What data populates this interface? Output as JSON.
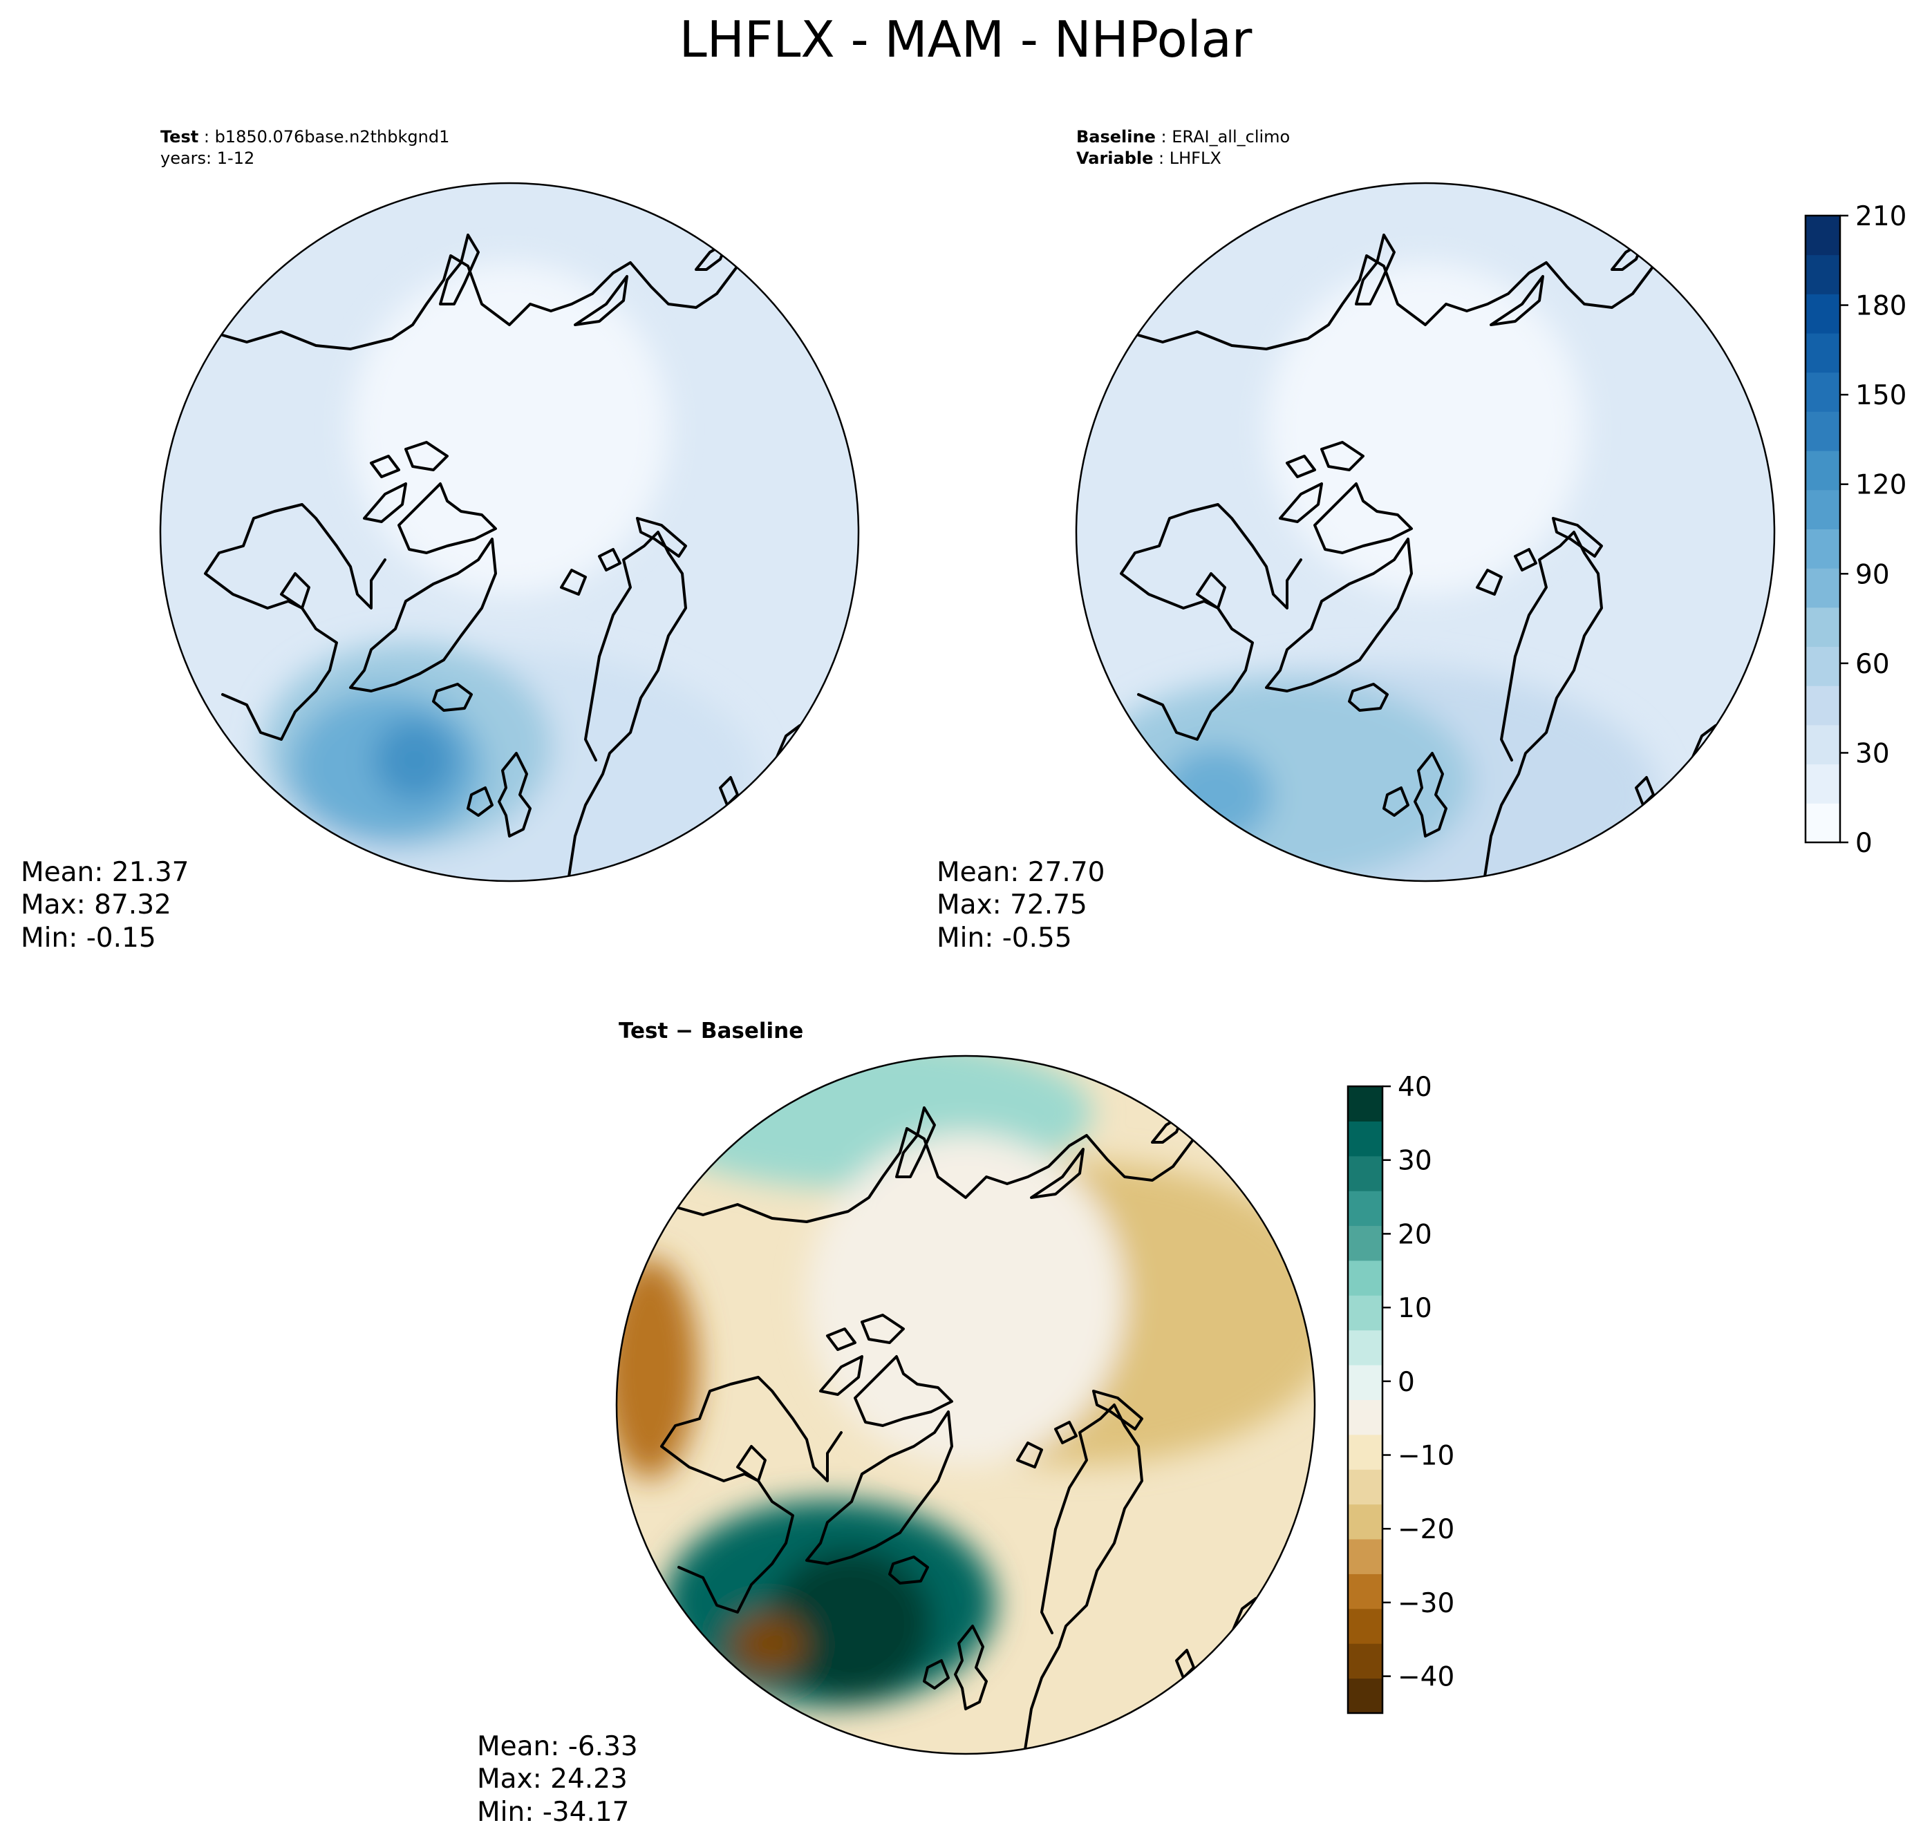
{
  "figure": {
    "title": "LHFLX - MAM - NHPolar"
  },
  "panels": {
    "test": {
      "label_key": "Test",
      "label_value": "b1850.076base.n2thbkgnd1",
      "years": "years: 1-12",
      "stats": {
        "mean": "Mean: 21.37",
        "max": "Max: 87.32",
        "min": "Min: -0.15"
      }
    },
    "baseline": {
      "label_key": "Baseline",
      "label_value": "ERAI_all_climo",
      "variable_key": "Variable",
      "variable_value": "LHFLX",
      "stats": {
        "mean": "Mean: 27.70",
        "max": "Max: 72.75",
        "min": "Min: -0.55"
      }
    },
    "diff": {
      "title": "Test − Baseline",
      "stats": {
        "mean": "Mean: -6.33",
        "max": "Max: 24.23",
        "min": "Min: -34.17"
      }
    }
  },
  "colorbars": {
    "blues": {
      "ticks": [
        "0",
        "30",
        "60",
        "90",
        "120",
        "150",
        "180",
        "210"
      ],
      "range": [
        0,
        210
      ],
      "colors": [
        "#f7fbff",
        "#e6f0fa",
        "#d6e6f4",
        "#c6dbef",
        "#b0d2e8",
        "#9ecae1",
        "#7fb9da",
        "#6baed6",
        "#539ecd",
        "#4292c6",
        "#2e7ebc",
        "#2171b5",
        "#1361a9",
        "#08519c",
        "#083f80",
        "#08306b"
      ]
    },
    "brbg": {
      "ticks": [
        "40",
        "30",
        "20",
        "10",
        "0",
        "−10",
        "−20",
        "−30",
        "−40"
      ],
      "range": [
        -45,
        40
      ],
      "colors": [
        "#543005",
        "#7a4606",
        "#995a0b",
        "#b87521",
        "#cf9a4f",
        "#dfc27d",
        "#ebd6a3",
        "#f6e8c3",
        "#f5f0e6",
        "#e6f3f1",
        "#c7eae5",
        "#9cd9cf",
        "#80cdc1",
        "#4fa59a",
        "#35978f",
        "#1a7b72",
        "#01665e",
        "#003c30"
      ]
    }
  },
  "maps": {
    "test": {
      "background": "#dce9f6",
      "lobes": [
        "#d0e2f3",
        "#9ecae1",
        "#6baed6",
        "#4292c6"
      ],
      "land": "#f2f7fd"
    },
    "baseline": {
      "background": "#dce9f6",
      "lobes": [
        "#c6dbef",
        "#9ecae1",
        "#6baed6"
      ],
      "land": "#f2f7fd"
    },
    "diff": {
      "background": "#f3e5c4",
      "lobes": [
        "#9cd9cf",
        "#01665e",
        "#003c30",
        "#dfc27d",
        "#b87521",
        "#7a4606"
      ],
      "land": "#f5f0e6"
    }
  },
  "chart_data": [
    {
      "type": "heatmap",
      "title": "Test: b1850.076base.n2thbkgnd1",
      "subtitle": "years: 1-12",
      "colorbar_range": [
        0,
        210
      ],
      "mean": 21.37,
      "max": 87.32,
      "min": -0.15
    },
    {
      "type": "heatmap",
      "title": "Baseline: ERAI_all_climo",
      "subtitle": "Variable: LHFLX",
      "colorbar_range": [
        0,
        210
      ],
      "colorbar_ticks": [
        0,
        30,
        60,
        90,
        120,
        150,
        180,
        210
      ],
      "mean": 27.7,
      "max": 72.75,
      "min": -0.55
    },
    {
      "type": "heatmap",
      "title": "Test − Baseline",
      "colorbar_range": [
        -45,
        40
      ],
      "colorbar_ticks": [
        40,
        30,
        20,
        10,
        0,
        -10,
        -20,
        -30,
        -40
      ],
      "mean": -6.33,
      "max": 24.23,
      "min": -34.17
    }
  ]
}
